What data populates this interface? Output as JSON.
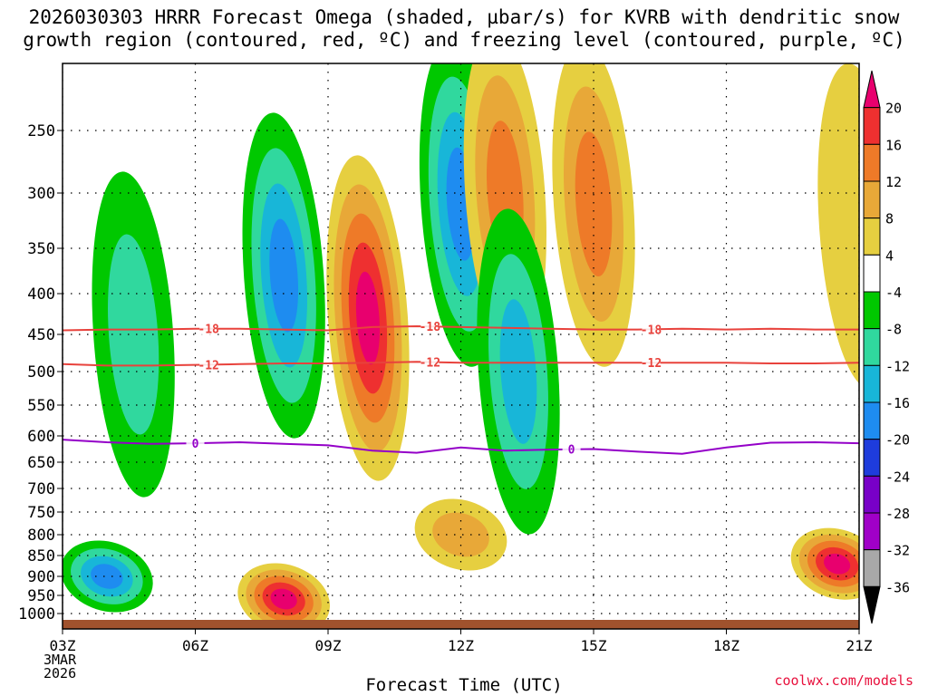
{
  "title_line1": "2026030303 HRRR Forecast Omega (shaded, µbar/s) for KVRB with dendritic snow",
  "title_line2": "growth region (contoured, red, ºC) and freezing level (contoured, purple, ºC)",
  "attribution": "coolwx.com/models",
  "colors": {
    "ground": "#a0522d",
    "dgz_contour": "#e8423c",
    "freezing_contour": "#9400c8"
  },
  "chart_data": {
    "type": "heatmap",
    "title": "2026030303 HRRR Forecast Omega (shaded, µbar/s) for KVRB with dendritic snow growth region (contoured, red, ºC) and freezing level (contoured, purple, ºC)",
    "xlabel": "Forecast Time (UTC)",
    "ylabel": "",
    "xlim": [
      0,
      18
    ],
    "ylim": [
      1025,
      200
    ],
    "x_ticks": [
      {
        "hour": 0,
        "label": "03Z"
      },
      {
        "hour": 3,
        "label": "06Z"
      },
      {
        "hour": 6,
        "label": "09Z"
      },
      {
        "hour": 9,
        "label": "12Z"
      },
      {
        "hour": 12,
        "label": "15Z"
      },
      {
        "hour": 15,
        "label": "18Z"
      },
      {
        "hour": 18,
        "label": "21Z"
      }
    ],
    "date_label": [
      "3MAR",
      "2026"
    ],
    "y_ticks": [
      250,
      300,
      350,
      400,
      450,
      500,
      550,
      600,
      650,
      700,
      750,
      800,
      850,
      900,
      950,
      1000
    ],
    "colorbar": {
      "labels": [
        "20",
        "16",
        "12",
        "8",
        "4",
        "-4",
        "-8",
        "-12",
        "-16",
        "-20",
        "-24",
        "-28",
        "-32",
        "-36"
      ],
      "colors": [
        "#e8006e",
        "#ee3030",
        "#ee7a28",
        "#e8a838",
        "#e6cf40",
        "#ffffff",
        "#00c800",
        "#30d89e",
        "#18b6d8",
        "#1e8cf0",
        "#1e3cdc",
        "#7800c8",
        "#a000c8",
        "#a8a8a8",
        "#000000"
      ]
    },
    "omega_features": [
      {
        "hour": 1.6,
        "p": 450,
        "value": -10
      },
      {
        "hour": 5.0,
        "p": 380,
        "value": -18
      },
      {
        "hour": 6.9,
        "p": 430,
        "value": 20
      },
      {
        "hour": 9.0,
        "p": 310,
        "value": -18
      },
      {
        "hour": 10.0,
        "p": 300,
        "value": 12
      },
      {
        "hour": 12.0,
        "p": 310,
        "value": 12
      },
      {
        "hour": 10.3,
        "p": 500,
        "value": -12
      },
      {
        "hour": 5.0,
        "p": 960,
        "value": 20
      },
      {
        "hour": 1.0,
        "p": 900,
        "value": -18
      },
      {
        "hour": 9.0,
        "p": 800,
        "value": 8
      },
      {
        "hour": 17.5,
        "p": 870,
        "value": 20
      },
      {
        "hour": 18.0,
        "p": 330,
        "value": 4
      }
    ],
    "series": [
      {
        "name": "-18",
        "color": "#e8423c",
        "x": [
          0,
          1,
          2,
          3,
          4,
          5,
          6,
          7,
          8,
          9,
          10,
          11,
          12,
          13,
          14,
          15,
          16,
          17,
          18
        ],
        "y": [
          445,
          444,
          444,
          443,
          443,
          444,
          445,
          441,
          440,
          441,
          442,
          443,
          444,
          444,
          443,
          444,
          443,
          444,
          444
        ]
      },
      {
        "name": "-12",
        "color": "#e8423c",
        "x": [
          0,
          1,
          2,
          3,
          4,
          5,
          6,
          7,
          8,
          9,
          10,
          11,
          12,
          13,
          14,
          15,
          16,
          17,
          18
        ],
        "y": [
          490,
          492,
          492,
          491,
          490,
          489,
          489,
          488,
          487,
          488,
          488,
          488,
          488,
          488,
          488,
          488,
          489,
          489,
          488
        ]
      },
      {
        "name": "0",
        "color": "#9400c8",
        "x": [
          0,
          1,
          2,
          3,
          4,
          5,
          6,
          7,
          8,
          9,
          10,
          11,
          12,
          13,
          14,
          15,
          16,
          17,
          18
        ],
        "y": [
          607,
          612,
          615,
          614,
          612,
          615,
          618,
          628,
          632,
          622,
          628,
          626,
          625,
          630,
          634,
          622,
          613,
          612,
          614
        ]
      }
    ]
  }
}
